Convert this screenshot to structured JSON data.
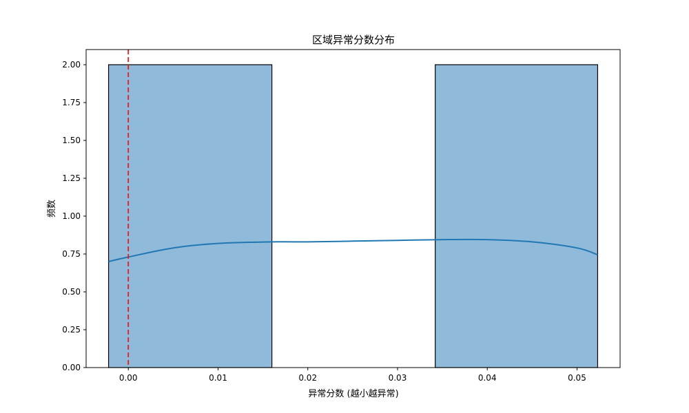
{
  "chart_data": {
    "type": "bar",
    "title": "区域异常分数分布",
    "xlabel": "异常分数 (越小越异常)",
    "ylabel": "频数",
    "xlim": [
      -0.0047,
      0.0548
    ],
    "ylim": [
      0,
      2.1
    ],
    "xticks": [
      0.0,
      0.01,
      0.02,
      0.03,
      0.04,
      0.05
    ],
    "xtick_labels": [
      "0.00",
      "0.01",
      "0.02",
      "0.03",
      "0.04",
      "0.05"
    ],
    "yticks": [
      0,
      0.25,
      0.5,
      0.75,
      1.0,
      1.25,
      1.5,
      1.75,
      2.0
    ],
    "ytick_labels": [
      "0.00",
      "0.25",
      "0.50",
      "0.75",
      "1.00",
      "1.25",
      "1.50",
      "1.75",
      "2.00"
    ],
    "grid": false,
    "bins": [
      {
        "x0": -0.0022,
        "x1": 0.016,
        "count": 2
      },
      {
        "x0": 0.016,
        "x1": 0.0342,
        "count": 0
      },
      {
        "x0": 0.0342,
        "x1": 0.0523,
        "count": 2
      }
    ],
    "kde": {
      "x": [
        -0.0022,
        0.0,
        0.005,
        0.01,
        0.016,
        0.02,
        0.025,
        0.03,
        0.035,
        0.04,
        0.045,
        0.05,
        0.0523
      ],
      "y": [
        0.7,
        0.73,
        0.79,
        0.82,
        0.83,
        0.83,
        0.835,
        0.84,
        0.845,
        0.845,
        0.83,
        0.79,
        0.745
      ]
    },
    "reference_line": {
      "x": 0.0,
      "style": "dashed"
    },
    "colors": {
      "bar_fill": "#8fbad9",
      "bar_edge": "#000000",
      "kde_line": "#1f77b4",
      "reference_line": "#e41a1c"
    }
  }
}
